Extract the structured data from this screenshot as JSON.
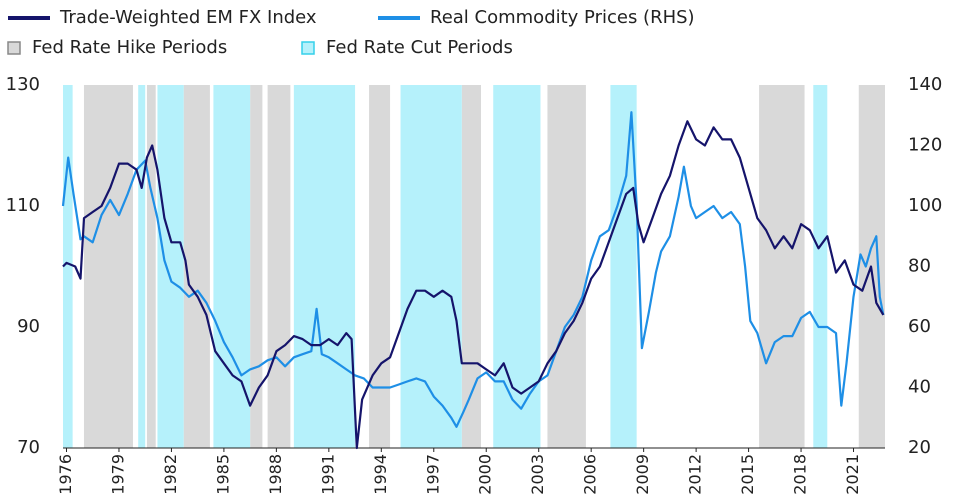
{
  "chart_data": {
    "type": "line",
    "series": [
      {
        "name": "Trade-Weighted EM FX Index",
        "color": "#15146b",
        "axis": "y",
        "x": [
          1975.8,
          1976.0,
          1976.5,
          1976.8,
          1977.0,
          1977.5,
          1978.0,
          1978.5,
          1979.0,
          1979.5,
          1980.0,
          1980.3,
          1980.6,
          1980.9,
          1981.2,
          1981.6,
          1982.0,
          1982.5,
          1982.8,
          1983.0,
          1983.5,
          1984.0,
          1984.5,
          1985.0,
          1985.5,
          1986.0,
          1986.5,
          1987.0,
          1987.5,
          1988.0,
          1988.5,
          1989.0,
          1989.5,
          1990.0,
          1990.5,
          1991.0,
          1991.5,
          1992.0,
          1992.3,
          1992.6,
          1992.9,
          1993.5,
          1994.0,
          1994.5,
          1995.0,
          1995.5,
          1996.0,
          1996.5,
          1997.0,
          1997.5,
          1998.0,
          1998.3,
          1998.6,
          1999.0,
          1999.5,
          2000.0,
          2000.5,
          2001.0,
          2001.5,
          2002.0,
          2002.5,
          2003.0,
          2003.5,
          2004.0,
          2004.5,
          2005.0,
          2005.5,
          2006.0,
          2006.5,
          2007.0,
          2007.5,
          2008.0,
          2008.4,
          2008.7,
          2009.0,
          2009.5,
          2010.0,
          2010.5,
          2011.0,
          2011.5,
          2012.0,
          2012.5,
          2013.0,
          2013.5,
          2014.0,
          2014.5,
          2015.0,
          2015.5,
          2016.0,
          2016.5,
          2017.0,
          2017.5,
          2018.0,
          2018.5,
          2019.0,
          2019.5,
          2020.0,
          2020.5,
          2021.0,
          2021.5,
          2022.0,
          2022.3,
          2022.7
        ],
        "values": [
          100,
          100.6,
          100,
          98,
          108,
          109,
          110,
          113,
          117,
          117,
          116,
          113,
          118,
          120,
          116,
          108,
          104,
          104,
          101,
          97,
          95,
          92,
          86,
          84,
          82,
          81,
          77,
          80,
          82,
          86,
          87,
          88.5,
          88,
          87,
          87,
          88,
          87,
          89,
          88,
          70,
          78,
          82,
          84,
          85,
          89,
          93,
          96,
          96,
          95,
          96,
          95,
          91,
          84,
          84,
          84,
          83,
          82,
          84,
          80,
          79,
          80,
          81,
          84,
          86,
          89,
          91,
          94,
          98,
          100,
          104,
          108,
          112,
          113,
          107,
          104,
          108,
          112,
          115,
          120,
          124,
          121,
          120,
          123,
          121,
          121,
          118,
          113,
          108,
          106,
          103,
          105,
          103,
          107,
          106,
          103,
          105,
          99,
          101,
          97,
          96,
          100,
          94,
          92
        ]
      },
      {
        "name": "Real Commodity Prices (RHS)",
        "color": "#1e8fe6",
        "axis": "y2",
        "x": [
          1975.8,
          1976.1,
          1976.4,
          1976.8,
          1977.0,
          1977.5,
          1978.0,
          1978.5,
          1979.0,
          1979.5,
          1980.0,
          1980.5,
          1980.8,
          1981.2,
          1981.6,
          1982.0,
          1982.5,
          1983.0,
          1983.5,
          1984.0,
          1984.5,
          1985.0,
          1985.5,
          1986.0,
          1986.5,
          1987.0,
          1987.5,
          1988.0,
          1988.5,
          1989.0,
          1989.5,
          1990.0,
          1990.3,
          1990.6,
          1991.0,
          1991.5,
          1992.0,
          1992.5,
          1993.0,
          1993.5,
          1994.0,
          1994.5,
          1995.0,
          1995.5,
          1996.0,
          1996.5,
          1997.0,
          1997.5,
          1998.0,
          1998.3,
          1998.7,
          1999.0,
          1999.5,
          2000.0,
          2000.5,
          2001.0,
          2001.5,
          2002.0,
          2002.5,
          2003.0,
          2003.5,
          2004.0,
          2004.5,
          2005.0,
          2005.5,
          2006.0,
          2006.5,
          2007.0,
          2007.5,
          2008.0,
          2008.3,
          2008.6,
          2008.9,
          2009.3,
          2009.7,
          2010.0,
          2010.5,
          2011.0,
          2011.3,
          2011.7,
          2012.0,
          2012.5,
          2013.0,
          2013.5,
          2014.0,
          2014.5,
          2014.8,
          2015.1,
          2015.5,
          2016.0,
          2016.5,
          2017.0,
          2017.5,
          2018.0,
          2018.5,
          2019.0,
          2019.5,
          2020.0,
          2020.3,
          2020.6,
          2021.0,
          2021.4,
          2021.7,
          2022.0,
          2022.3,
          2022.5,
          2022.7
        ],
        "values": [
          100,
          116,
          104,
          89,
          90,
          88,
          97,
          102,
          97,
          104,
          112,
          115,
          106,
          96,
          82,
          75,
          73,
          70,
          72,
          68,
          62,
          55,
          50,
          44,
          46,
          47,
          49,
          50,
          47,
          50,
          51,
          52,
          66,
          51,
          50,
          48,
          46,
          44,
          43,
          40,
          40,
          40,
          41,
          42,
          43,
          42,
          37,
          34,
          30,
          27,
          32,
          36,
          43,
          45,
          42,
          42,
          36,
          33,
          38,
          42,
          44,
          52,
          60,
          64,
          70,
          82,
          90,
          92,
          100,
          110,
          131,
          100,
          53,
          65,
          78,
          85,
          90,
          103,
          113,
          100,
          96,
          98,
          100,
          96,
          98,
          94,
          80,
          62,
          58,
          48,
          55,
          57,
          57,
          63,
          65,
          60,
          60,
          58,
          34,
          48,
          70,
          84,
          80,
          86,
          90,
          70,
          64
        ]
      }
    ],
    "spans": [
      {
        "name": "Fed Rate Hike Periods",
        "color": "#d9d9d9",
        "ranges": [
          [
            1977.0,
            1979.8
          ],
          [
            1980.6,
            1981.1
          ],
          [
            1982.7,
            1984.2
          ],
          [
            1986.5,
            1987.2
          ],
          [
            1987.5,
            1988.8
          ],
          [
            1993.3,
            1994.5
          ],
          [
            1998.6,
            1999.7
          ],
          [
            2003.5,
            2005.7
          ],
          [
            2015.6,
            2018.2
          ],
          [
            2021.3,
            2022.8
          ]
        ]
      },
      {
        "name": "Fed Rate Cut Periods",
        "color": "#b5f1fb",
        "ranges": [
          [
            1975.8,
            1976.35
          ],
          [
            1980.1,
            1980.5
          ],
          [
            1981.2,
            1982.7
          ],
          [
            1984.4,
            1986.5
          ],
          [
            1989.0,
            1992.5
          ],
          [
            1995.1,
            1998.6
          ],
          [
            2000.4,
            2003.1
          ],
          [
            2007.1,
            2008.6
          ],
          [
            2018.7,
            2019.5
          ]
        ]
      }
    ],
    "xlim": [
      1975.8,
      2022.8
    ],
    "xticks": [
      1976,
      1979,
      1982,
      1985,
      1988,
      1991,
      1994,
      1997,
      2000,
      2003,
      2006,
      2009,
      2012,
      2015,
      2018,
      2021
    ],
    "ylim": [
      70,
      130
    ],
    "yticks": [
      70,
      90,
      110,
      130
    ],
    "y2lim": [
      20,
      140
    ],
    "y2ticks": [
      20,
      40,
      60,
      80,
      100,
      120,
      140
    ]
  }
}
